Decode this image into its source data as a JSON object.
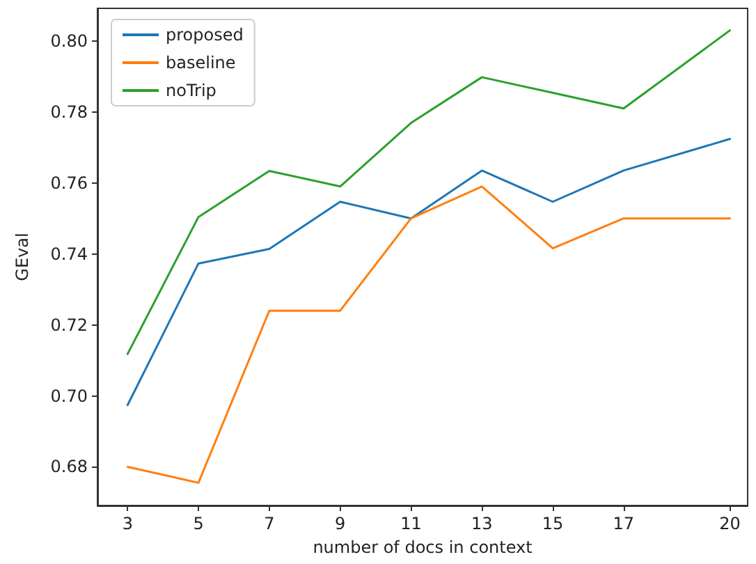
{
  "chart_data": {
    "type": "line",
    "xlabel": "number of docs in context",
    "ylabel": "GEval",
    "x": [
      3,
      5,
      7,
      9,
      11,
      13,
      15,
      17,
      20
    ],
    "series": [
      {
        "name": "proposed",
        "color": "#1f77b4",
        "values": [
          0.6974,
          0.7373,
          0.7414,
          0.7547,
          0.75,
          0.7635,
          0.7547,
          0.7635,
          0.7724
        ]
      },
      {
        "name": "baseline",
        "color": "#ff7f0e",
        "values": [
          0.68,
          0.6755,
          0.724,
          0.724,
          0.75,
          0.759,
          0.7416,
          0.75,
          0.75
        ]
      },
      {
        "name": "noTrip",
        "color": "#2ca02c",
        "values": [
          0.7118,
          0.7504,
          0.7634,
          0.759,
          0.7769,
          0.7898,
          0.7854,
          0.781,
          0.803
        ]
      }
    ],
    "xlim": [
      2.15,
      20.5
    ],
    "xticks": [
      3,
      5,
      7,
      9,
      11,
      13,
      15,
      17,
      20
    ],
    "ylim": [
      0.6691,
      0.8092
    ],
    "yticks": [
      0.68,
      {
        "value": 0.7,
        "label": "0.70"
      },
      0.72,
      0.74,
      0.76,
      0.78,
      {
        "value": 0.8,
        "label": "0.80"
      }
    ],
    "grid": false,
    "legend": "top left",
    "marker": "none",
    "line_style": "solid"
  }
}
